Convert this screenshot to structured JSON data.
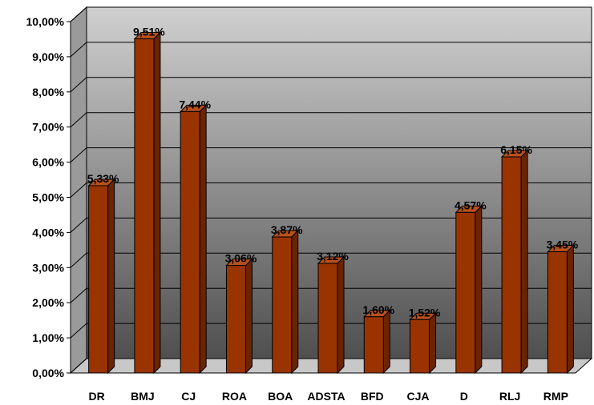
{
  "chart_data": {
    "type": "bar",
    "title": "",
    "xlabel": "",
    "ylabel": "",
    "categories": [
      "DR",
      "BMJ",
      "CJ",
      "ROA",
      "BOA",
      "ADSTA",
      "BFD",
      "CJA",
      "D",
      "RLJ",
      "RMP"
    ],
    "values": [
      5.33,
      9.51,
      7.44,
      3.06,
      3.87,
      3.12,
      1.6,
      1.52,
      4.57,
      6.15,
      3.45
    ],
    "value_labels": [
      "5,33%",
      "9,51%",
      "7,44%",
      "3,06%",
      "3,87%",
      "3,12%",
      "1,60%",
      "1,52%",
      "4,57%",
      "6,15%",
      "3,45%"
    ],
    "ylim": [
      0,
      10
    ],
    "y_ticks": [
      0,
      1,
      2,
      3,
      4,
      5,
      6,
      7,
      8,
      9,
      10
    ],
    "y_tick_labels": [
      "0,00%",
      "1,00%",
      "2,00%",
      "3,00%",
      "4,00%",
      "5,00%",
      "6,00%",
      "7,00%",
      "8,00%",
      "9,00%",
      "10,00%"
    ],
    "grid": true,
    "legend": "none",
    "style": "3d-column",
    "colors": {
      "bar_front": "#993300",
      "bar_side": "#6b2400",
      "bar_top": "#b8501c",
      "wall_top": "#d0d0d0",
      "wall_bottom": "#4f4f4f"
    }
  }
}
